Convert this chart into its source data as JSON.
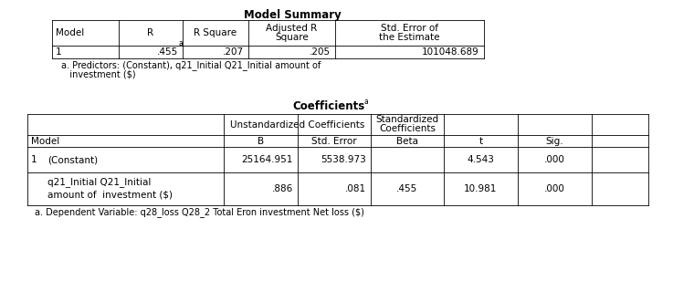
{
  "title1": "Model Summary",
  "title2": "Coefficients",
  "title2_sup": "a",
  "ms_headers_row1": [
    "",
    "",
    "",
    "Adjusted R",
    "Std. Error of"
  ],
  "ms_headers_row2": [
    "Model",
    "R",
    "R Square",
    "Square",
    "the Estimate"
  ],
  "ms_data": [
    "1",
    ".455",
    ".207",
    ".205",
    "101048.689"
  ],
  "ms_note_line1": "a. Predictors: (Constant), q21_Initial Q21_Initial amount of",
  "ms_note_line2": "   investment ($)",
  "coef_merged1": "Unstandardized Coefficients",
  "coef_merged2_line1": "Standardized",
  "coef_merged2_line2": "Coefficients",
  "coef_sub": [
    "B",
    "Std. Error",
    "Beta",
    "t",
    "Sig."
  ],
  "coef_row1_model": "1",
  "coef_row1_label": "(Constant)",
  "coef_row1_B": "25164.951",
  "coef_row1_SE": "5538.973",
  "coef_row1_Beta": "",
  "coef_row1_t": "4.543",
  "coef_row1_sig": ".000",
  "coef_row2_label1": "q21_Initial Q21_Initial",
  "coef_row2_label2": "amount of  investment ($)",
  "coef_row2_B": ".886",
  "coef_row2_SE": ".081",
  "coef_row2_Beta": ".455",
  "coef_row2_t": "10.981",
  "coef_row2_sig": ".000",
  "coef_note": "a. Dependent Variable: q28_loss Q28_2 Total Eron investment Net loss ($)",
  "bg": "#ffffff",
  "lc": "#000000",
  "tc": "#000000",
  "fs": 7.5,
  "fs_title": 8.5,
  "fs_sup": 5.5,
  "lw": 0.6
}
